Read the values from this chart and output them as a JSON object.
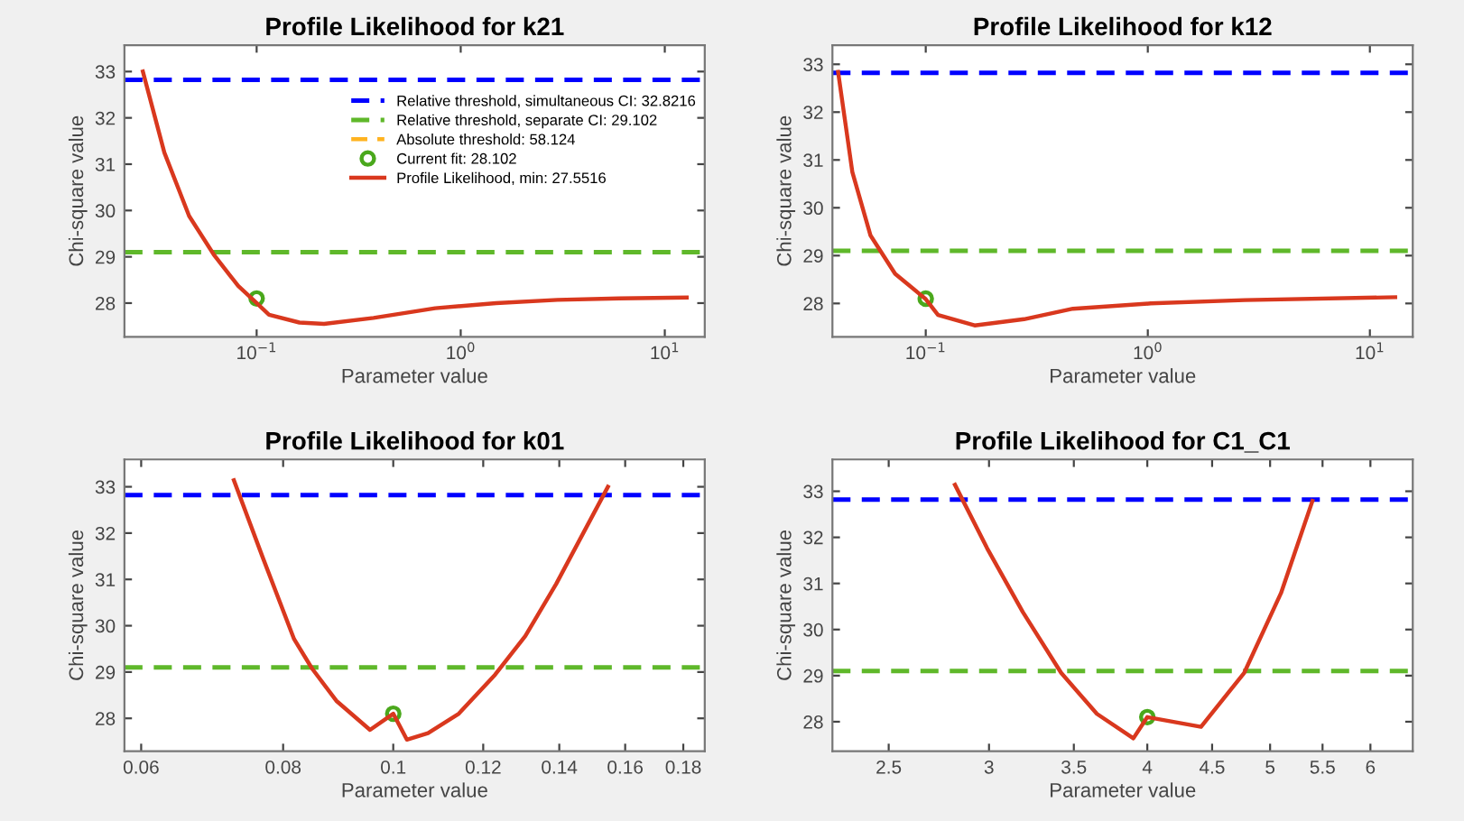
{
  "chart_data": [
    {
      "type": "line",
      "title": "Profile Likelihood for k21",
      "xlabel": "Parameter value",
      "ylabel": "Chi-square value",
      "log": "x",
      "xlim": [
        0.0225,
        15.7
      ],
      "ylim": [
        27.27,
        33.57
      ],
      "xticks": [
        {
          "value": 0.1,
          "label": "10$^{−1}$"
        },
        {
          "value": 1,
          "label": "10$^{0}$"
        },
        {
          "value": 10,
          "label": "10$^{1}$"
        }
      ],
      "yticks": [
        28,
        29,
        30,
        31,
        32,
        33
      ],
      "legend": "top right",
      "ref_lines": [
        {
          "axis": "y",
          "value": 32.8216,
          "label": "Relative threshold, simultaneous CI: 32.8216",
          "color": "#0000ff",
          "line_style": "dashed"
        },
        {
          "axis": "y",
          "value": 29.102,
          "label": "Relative threshold, separate CI: 29.102",
          "color": "#5fb82a",
          "line_style": "dashed"
        }
      ],
      "series": [
        {
          "name": "Absolute threshold: 58.124",
          "line_style": "dashed",
          "color": "#ffb320"
        },
        {
          "name": "Current fit: 28.102",
          "type": "scatter",
          "marker": "circle",
          "color": "#4aa81c",
          "x": [
            0.1
          ],
          "values": [
            28.1
          ]
        },
        {
          "name": "Profile Likelihood, min: 27.5516",
          "marker": "none",
          "line_style": "solid",
          "color": "#d9381e",
          "x": [
            0.0277,
            0.0353,
            0.0467,
            0.0616,
            0.0812,
            0.1,
            0.115,
            0.162,
            0.214,
            0.374,
            0.75,
            1.49,
            2.98,
            5.96,
            12.8
          ],
          "values": [
            33.0,
            31.25,
            29.88,
            29.05,
            28.37,
            28.0,
            27.75,
            27.58,
            27.55,
            27.68,
            27.89,
            28.0,
            28.07,
            28.1,
            28.12
          ]
        }
      ]
    },
    {
      "type": "line",
      "title": "Profile Likelihood for k12",
      "xlabel": "Parameter value",
      "ylabel": "Chi-square value",
      "log": "x",
      "xlim": [
        0.038,
        15.6
      ],
      "ylim": [
        27.3,
        33.4
      ],
      "xticks": [
        {
          "value": 0.1,
          "label": "10$^{−1}$"
        },
        {
          "value": 1,
          "label": "10$^{0}$"
        },
        {
          "value": 10,
          "label": "10$^{1}$"
        }
      ],
      "yticks": [
        28,
        29,
        30,
        31,
        32,
        33
      ],
      "ref_lines": [
        {
          "axis": "y",
          "value": 32.8216,
          "color": "#0000ff",
          "line_style": "dashed"
        },
        {
          "axis": "y",
          "value": 29.102,
          "color": "#5fb82a",
          "line_style": "dashed"
        }
      ],
      "series": [
        {
          "type": "scatter",
          "marker": "circle",
          "color": "#4aa81c",
          "x": [
            0.1
          ],
          "values": [
            28.1
          ]
        },
        {
          "marker": "none",
          "line_style": "solid",
          "color": "#d9381e",
          "x": [
            0.0403,
            0.0467,
            0.0564,
            0.0728,
            0.1,
            0.1136,
            0.166,
            0.277,
            0.46,
            1.03,
            2.73,
            13.0
          ],
          "values": [
            32.84,
            30.75,
            29.42,
            28.62,
            28.09,
            27.76,
            27.54,
            27.67,
            27.89,
            28.0,
            28.07,
            28.13
          ]
        }
      ]
    },
    {
      "type": "line",
      "title": "Profile Likelihood for k01",
      "xlabel": "Parameter value",
      "ylabel": "Chi-square value",
      "log": "x",
      "xlim": [
        0.058,
        0.188
      ],
      "ylim": [
        27.29,
        33.59
      ],
      "xticks": [
        0.06,
        0.08,
        0.1,
        0.12,
        0.14,
        0.16,
        0.18
      ],
      "yticks": [
        28,
        29,
        30,
        31,
        32,
        33
      ],
      "ref_lines": [
        {
          "axis": "y",
          "value": 32.8216,
          "color": "#0000ff",
          "line_style": "dashed"
        },
        {
          "axis": "y",
          "value": 29.102,
          "color": "#5fb82a",
          "line_style": "dashed"
        }
      ],
      "series": [
        {
          "type": "scatter",
          "marker": "circle",
          "color": "#4aa81c",
          "x": [
            0.1
          ],
          "values": [
            28.1
          ]
        },
        {
          "marker": "none",
          "line_style": "solid",
          "color": "#d9381e",
          "x": [
            0.0724,
            0.0768,
            0.0818,
            0.0848,
            0.0891,
            0.0954,
            0.1,
            0.1028,
            0.1073,
            0.1142,
            0.1229,
            0.1307,
            0.1391,
            0.1545
          ],
          "values": [
            33.14,
            31.46,
            29.71,
            29.08,
            28.38,
            27.75,
            28.1,
            27.54,
            27.68,
            28.1,
            28.94,
            29.78,
            30.9,
            33.0
          ]
        }
      ]
    },
    {
      "type": "line",
      "title": "Profile Likelihood for C1_C1",
      "xlabel": "Parameter value",
      "ylabel": "Chi-square value",
      "log": "x",
      "xlim": [
        2.257,
        6.48
      ],
      "ylim": [
        27.36,
        33.69
      ],
      "xticks": [
        2.5,
        3,
        3.5,
        4,
        4.5,
        5,
        5.5,
        6
      ],
      "yticks": [
        28,
        29,
        30,
        31,
        32,
        33
      ],
      "ref_lines": [
        {
          "axis": "y",
          "value": 32.8216,
          "color": "#0000ff",
          "line_style": "dashed"
        },
        {
          "axis": "y",
          "value": 29.102,
          "color": "#5fb82a",
          "line_style": "dashed"
        }
      ],
      "series": [
        {
          "type": "scatter",
          "marker": "circle",
          "color": "#4aa81c",
          "x": [
            4.0
          ],
          "values": [
            28.1
          ]
        },
        {
          "marker": "none",
          "line_style": "solid",
          "color": "#d9381e",
          "x": [
            2.82,
            2.99,
            3.19,
            3.42,
            3.65,
            3.9,
            4.0,
            4.41,
            4.77,
            5.1,
            5.4
          ],
          "values": [
            33.14,
            31.76,
            30.38,
            29.06,
            28.17,
            27.64,
            28.1,
            27.89,
            29.06,
            30.79,
            32.79
          ]
        }
      ]
    }
  ]
}
